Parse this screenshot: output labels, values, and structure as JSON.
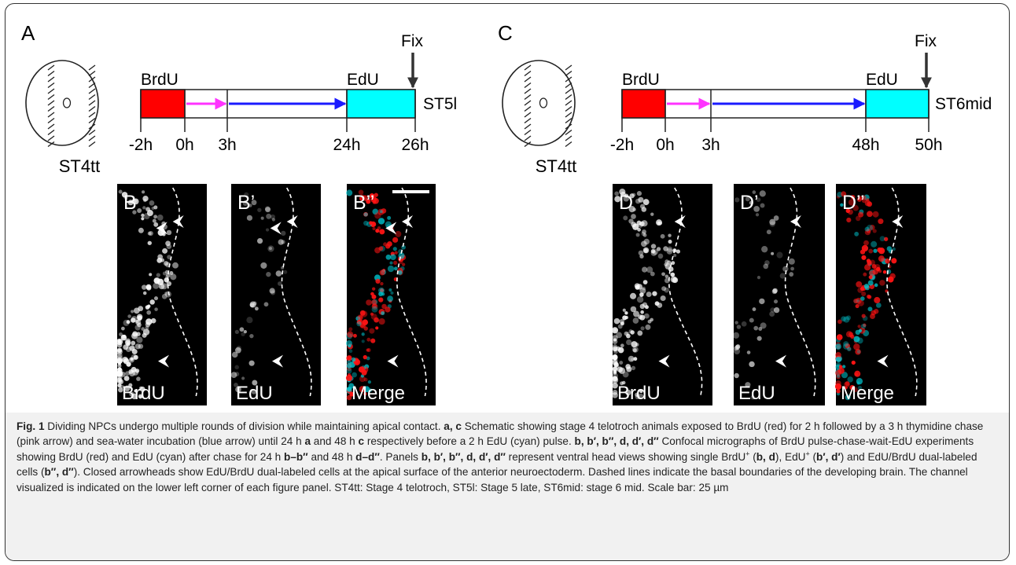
{
  "panels": [
    {
      "label": "A",
      "pulse1": "BrdU",
      "pulse2": "EdU",
      "fix": "Fix",
      "embryo_stage": "ST4tt",
      "end_stage": "ST5l",
      "times": [
        "-2h",
        "0h",
        "3h",
        "24h",
        "26h"
      ]
    },
    {
      "label": "C",
      "pulse1": "BrdU",
      "pulse2": "EdU",
      "fix": "Fix",
      "embryo_stage": "ST4tt",
      "end_stage": "ST6mid",
      "times": [
        "-2h",
        "0h",
        "3h",
        "48h",
        "50h"
      ]
    }
  ],
  "micrographs": [
    {
      "label": "B",
      "channel": "BrdU"
    },
    {
      "label": "B’",
      "channel": "EdU"
    },
    {
      "label": "B’’",
      "channel": "Merge"
    },
    {
      "label": "D",
      "channel": "BrdU"
    },
    {
      "label": "D’",
      "channel": "EdU"
    },
    {
      "label": "D’’",
      "channel": "Merge"
    }
  ],
  "caption": {
    "runs": [
      {
        "bold": "Fig. 1"
      },
      " Dividing NPCs undergo multiple rounds of division while maintaining apical contact. ",
      {
        "bold": "a, c"
      },
      " Schematic showing stage 4 telotroch animals exposed to BrdU (red) for 2 h followed by a 3 h thymidine chase (pink arrow) and sea-water incubation (blue arrow) until 24 h ",
      {
        "bold": "a"
      },
      " and 48 h ",
      {
        "bold": "c"
      },
      " respectively before a 2 h EdU (cyan) pulse. ",
      {
        "bold": "b, b′, b″, d, d′, d″"
      },
      " Confocal micrographs of BrdU pulse-chase-wait-EdU experiments showing BrdU (red) and EdU (cyan) after chase for 24 h ",
      {
        "bold": "b–b″"
      },
      " and 48 h ",
      {
        "bold": "d–d″"
      },
      ". Panels ",
      {
        "bold": "b, b′, b″, d, d′, d″"
      },
      " represent ventral head views showing single BrdU",
      {
        "sup": "+"
      },
      " (",
      {
        "bold": "b, d"
      },
      "), EdU",
      {
        "sup": "+"
      },
      " (",
      {
        "bold": "b′, d′"
      },
      ") and EdU/BrdU dual-labeled cells (",
      {
        "bold": "b″, d″"
      },
      "). Closed arrowheads show EdU/BrdU dual-labeled cells at the apical surface of the anterior neuroectoderm. Dashed lines indicate the basal boundaries of the developing brain. The channel visualized is indicated on the lower left corner of each figure panel. ST4tt: Stage 4 telotroch, ST5l: Stage 5 late, ST6mid: stage 6 mid. Scale bar: 25 µm"
    ]
  }
}
